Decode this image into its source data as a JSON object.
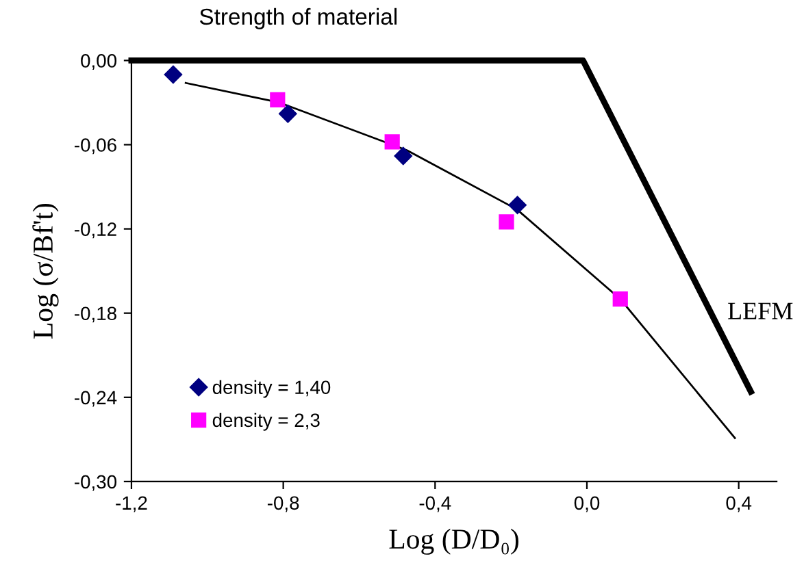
{
  "chart_data": {
    "type": "scatter",
    "xlabel": "Log (D/D₀)",
    "ylabel": "Log (σ/Bf't)",
    "xlim": [
      -1.2,
      0.5
    ],
    "ylim": [
      -0.3,
      0.0
    ],
    "xticks": [
      {
        "value": -1.2,
        "label": "-1,2"
      },
      {
        "value": -0.8,
        "label": "-0,8"
      },
      {
        "value": -0.4,
        "label": "-0,4"
      },
      {
        "value": 0.0,
        "label": "0,0"
      },
      {
        "value": 0.4,
        "label": "0,4"
      }
    ],
    "yticks": [
      {
        "value": 0.0,
        "label": "0,00"
      },
      {
        "value": -0.06,
        "label": "-0,06"
      },
      {
        "value": -0.12,
        "label": "-0,12"
      },
      {
        "value": -0.18,
        "label": "-0,18"
      },
      {
        "value": -0.24,
        "label": "-0,24"
      },
      {
        "value": -0.3,
        "label": "-0,30"
      }
    ],
    "grid": false,
    "legend": "bottom left",
    "series": [
      {
        "name": "density = 1,40",
        "marker": "diamond",
        "color": "#000080",
        "x": [
          -1.09,
          -0.788,
          -0.484,
          -0.183
        ],
        "values": [
          -0.01,
          -0.038,
          -0.068,
          -0.103
        ]
      },
      {
        "name": "density = 2,3",
        "marker": "square",
        "color": "#ff00ff",
        "x": [
          -0.815,
          -0.513,
          -0.212,
          0.088
        ],
        "values": [
          -0.028,
          -0.058,
          -0.115,
          -0.17
        ]
      },
      {
        "type": "line",
        "color": "#000000",
        "x": [
          -1.057,
          -0.81,
          -0.474,
          -0.185,
          0.088,
          0.39
        ],
        "values": [
          -0.016,
          -0.03,
          -0.064,
          -0.106,
          -0.17,
          -0.269
        ]
      },
      {
        "type": "line",
        "color": "#000000",
        "x": [
          -1.2,
          -0.01,
          0.432
        ],
        "values": [
          0.0,
          0.0,
          -0.236
        ]
      }
    ],
    "annotations": [
      {
        "text": "Strength of material",
        "x": -0.76,
        "y": 0.0
      },
      {
        "text": "LEFM",
        "x": 0.33,
        "y": -0.18
      }
    ]
  }
}
